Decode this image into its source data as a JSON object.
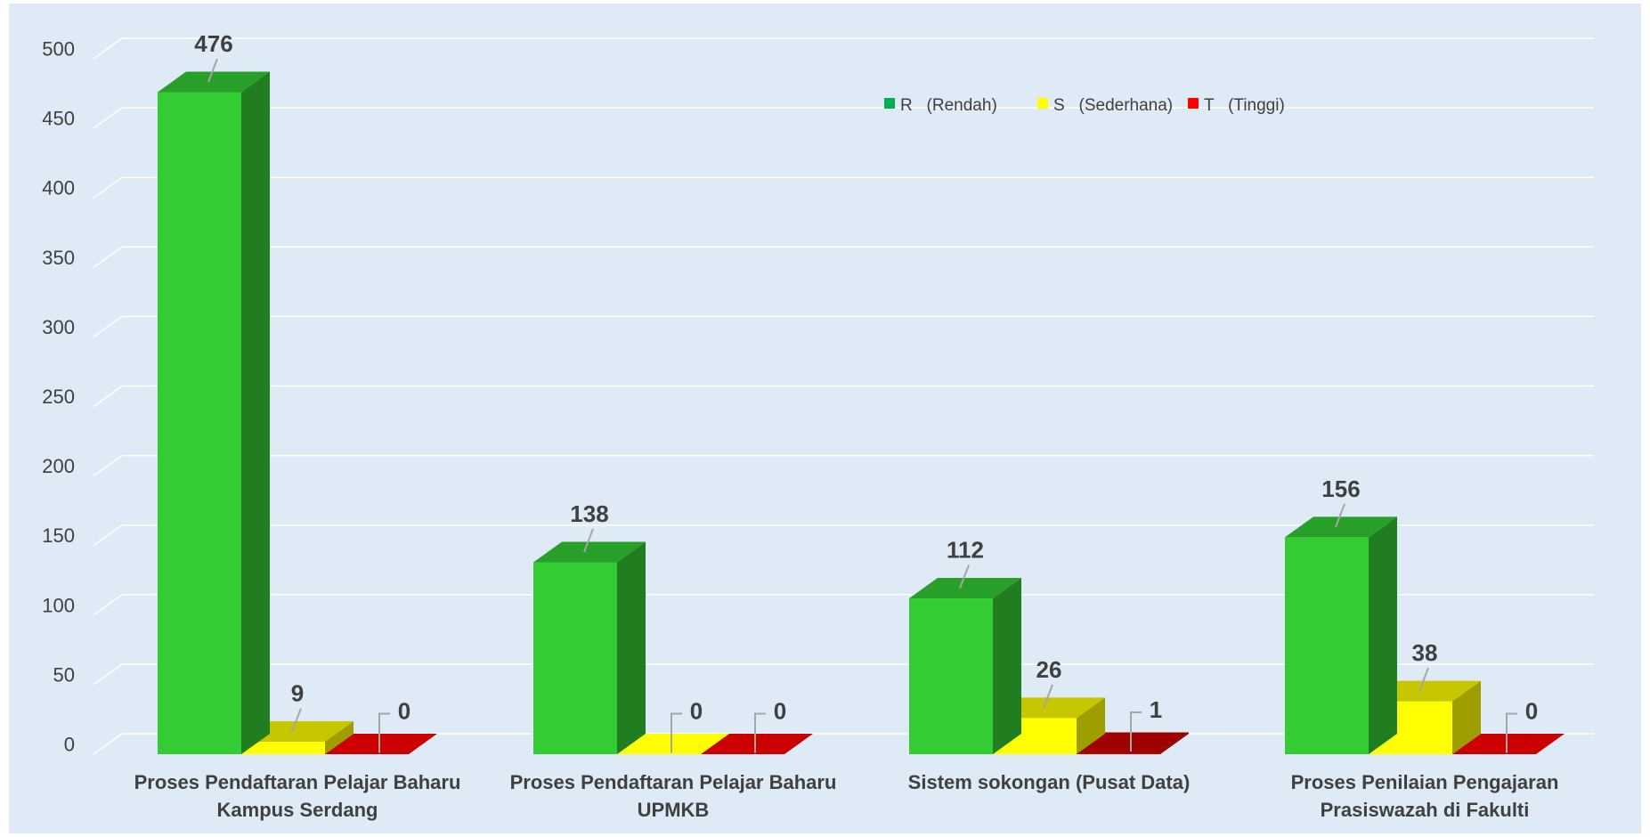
{
  "chart_data": {
    "type": "bar",
    "title": "",
    "xlabel": "",
    "ylabel": "",
    "ylim": [
      0,
      500
    ],
    "yticks": [
      0,
      50,
      100,
      150,
      200,
      250,
      300,
      350,
      400,
      450,
      500
    ],
    "grid": true,
    "legend_position": "top-center",
    "categories": [
      [
        "Proses Pendaftaran Pelajar Baharu",
        "Kampus Serdang"
      ],
      [
        "Proses Pendaftaran Pelajar Baharu",
        "UPMKB"
      ],
      [
        "Sistem sokongan (Pusat Data)"
      ],
      [
        "Proses Penilaian Pengajaran",
        "Prasiswazah di Fakulti"
      ]
    ],
    "series": [
      {
        "name": "R   (Rendah)",
        "color": "#33CC33",
        "values": [
          476,
          138,
          112,
          156
        ]
      },
      {
        "name": "S   (Sederhana)",
        "color": "#FFFF00",
        "values": [
          9,
          0,
          26,
          38
        ]
      },
      {
        "name": "T   (Tinggi)",
        "color": "#CC0000",
        "values": [
          0,
          0,
          1,
          0
        ]
      }
    ],
    "legend_swatch_colors": [
      "#00B050",
      "#FFFF00",
      "#FF0000"
    ],
    "background_color": "#DEEAF6"
  }
}
